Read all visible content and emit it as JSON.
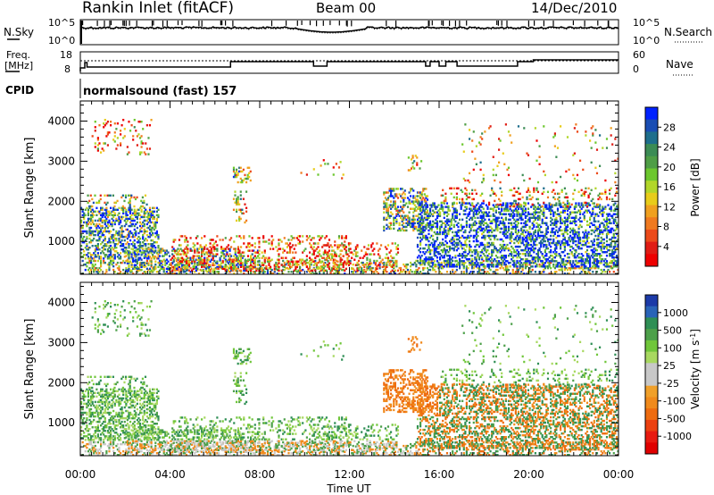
{
  "header": {
    "station": "Rankin Inlet (fitACF)",
    "beam": "Beam 00",
    "date": "14/Dec/2010"
  },
  "noise_panel": {
    "left_label": "N.Sky",
    "right_label": "N.Search",
    "ticks": [
      "10^5",
      "10^0"
    ]
  },
  "freq_panel": {
    "left_label_1": "Freq.",
    "left_label_2": "[MHz]",
    "left_ticks": [
      "18",
      "8"
    ],
    "right_label": "Nave",
    "right_ticks": [
      "60",
      "0"
    ]
  },
  "cpid": {
    "label": "CPID",
    "program": "normalsound (fast) 157"
  },
  "chart_data": [
    {
      "type": "heatmap",
      "title": "",
      "ylabel": "Slant Range [km]",
      "xlabel": "",
      "ylim": [
        180,
        4500
      ],
      "y_ticks": [
        "1000",
        "2000",
        "3000",
        "4000"
      ],
      "xlim_hours": [
        0,
        24
      ],
      "colorbar": {
        "label": "Power [dB]",
        "ticks": [
          "4",
          "8",
          "12",
          "16",
          "20",
          "24",
          "28"
        ],
        "colors": [
          "#0022ff",
          "#1a4db3",
          "#1e6e8c",
          "#3c8c55",
          "#4f9e46",
          "#6cc72e",
          "#b2d62a",
          "#e8cc1a",
          "#f0a020",
          "#f07a20",
          "#ec4a1a",
          "#e01c14",
          "#ee0000"
        ]
      }
    },
    {
      "type": "heatmap",
      "title": "",
      "ylabel": "Slant Range [km]",
      "xlabel": "Time UT",
      "x_ticks": [
        "00:00",
        "04:00",
        "08:00",
        "12:00",
        "16:00",
        "20:00",
        "00:00"
      ],
      "ylim": [
        180,
        4500
      ],
      "y_ticks": [
        "1000",
        "2000",
        "3000",
        "4000"
      ],
      "xlim_hours": [
        0,
        24
      ],
      "colorbar": {
        "label": "Velocity [m s",
        "label_sup": "-1",
        "label_end": "]",
        "ticks": [
          "1000",
          "500",
          "100",
          "25",
          "-25",
          "-100",
          "-500",
          "-1000"
        ],
        "colors": [
          "#1c3aa8",
          "#2a64b8",
          "#2f8f55",
          "#4da04a",
          "#70c63a",
          "#a8d860",
          "#c8c8c8",
          "#c8c8c8",
          "#f0a02a",
          "#f08a1c",
          "#ee6c10",
          "#ec4010",
          "#e81a10",
          "#e00000"
        ]
      }
    }
  ]
}
